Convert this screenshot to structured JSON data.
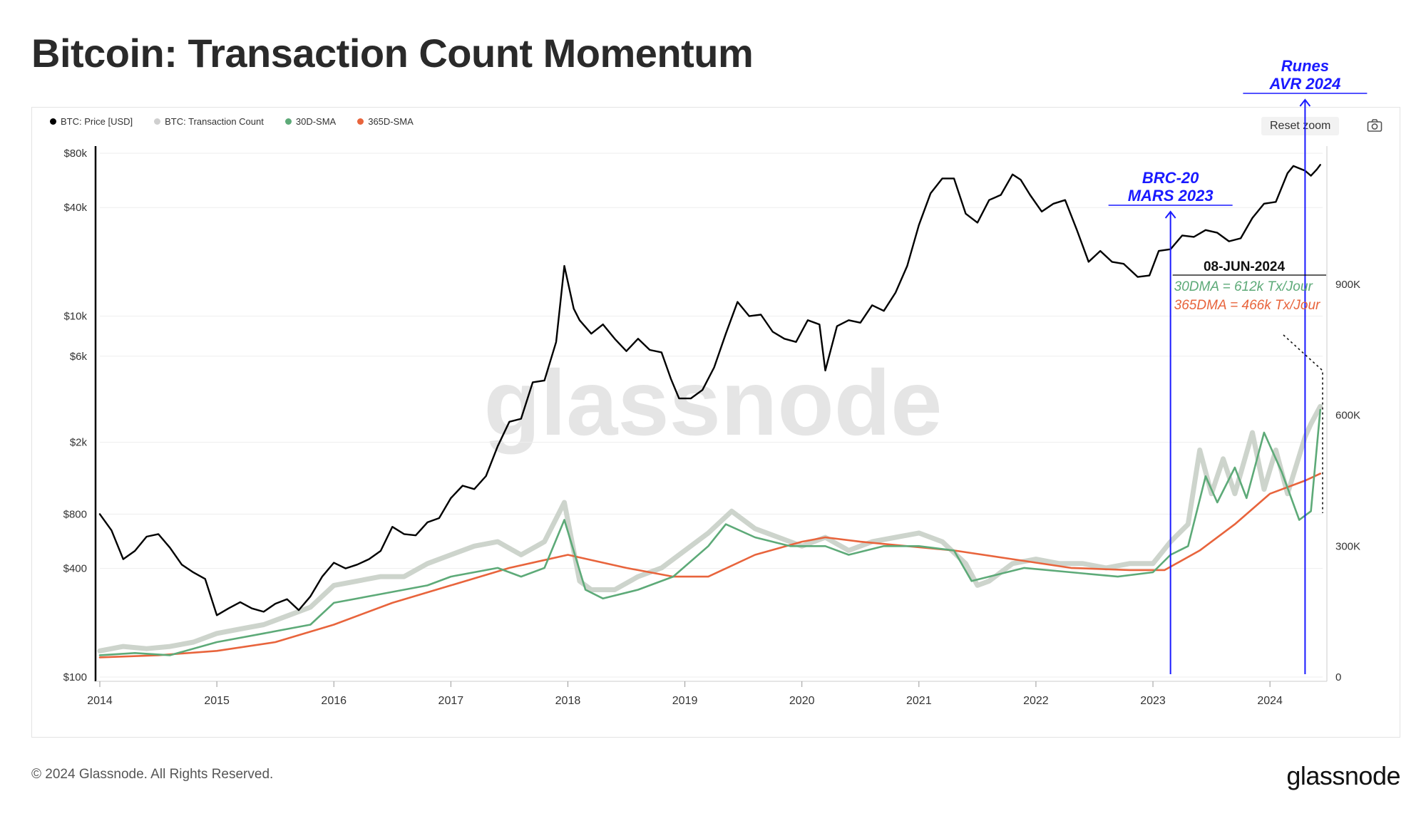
{
  "page": {
    "title": "Bitcoin: Transaction Count Momentum",
    "copyright": "© 2024 Glassnode. All Rights Reserved.",
    "brand": "glassnode",
    "watermark": "glassnode"
  },
  "toolbar": {
    "reset_zoom_label": "Reset zoom",
    "camera_icon": "camera-icon"
  },
  "colors": {
    "price": "#000000",
    "tx_count": "#c8cfc7",
    "sma30": "#5daa78",
    "sma365": "#e8643c",
    "annotation": "#1a1aff",
    "grid": "#eeeeee"
  },
  "legend": [
    {
      "label": "BTC: Price [USD]",
      "color": "#000000"
    },
    {
      "label": "BTC: Transaction Count",
      "color": "#cfcfcf"
    },
    {
      "label": "30D-SMA",
      "color": "#5daa78"
    },
    {
      "label": "365D-SMA",
      "color": "#e8643c"
    }
  ],
  "annotations": {
    "brc20": {
      "line1": "BRC-20",
      "line2": "MARS 2023",
      "x": 2023.15
    },
    "runes": {
      "line1": "Runes",
      "line2": "AVR 2024",
      "x": 2024.3
    },
    "callout": {
      "date": "08-JUN-2024",
      "dma30": "30DMA = 612k Tx/Jour",
      "dma365": "365DMA = 466k Tx/Jour"
    }
  },
  "chart_data": {
    "type": "line",
    "x_ticks": [
      "2014",
      "2015",
      "2016",
      "2017",
      "2018",
      "2019",
      "2020",
      "2021",
      "2022",
      "2023",
      "2024"
    ],
    "xlim": [
      2014,
      2024.45
    ],
    "y_left": {
      "scale": "log",
      "ticks": [
        "$100",
        "$400",
        "$800",
        "$2k",
        "$6k",
        "$10k",
        "$40k",
        "$80k"
      ],
      "tick_values": [
        100,
        400,
        800,
        2000,
        6000,
        10000,
        40000,
        80000
      ],
      "ylim": [
        100,
        80000
      ]
    },
    "y_right": {
      "scale": "linear",
      "ticks": [
        "0",
        "300K",
        "600K",
        "900K"
      ],
      "tick_values": [
        0,
        300000,
        600000,
        900000
      ],
      "ylim": [
        0,
        1200000
      ]
    },
    "series": [
      {
        "name": "BTC: Price [USD]",
        "axis": "left",
        "points": [
          [
            2014.0,
            800
          ],
          [
            2014.1,
            650
          ],
          [
            2014.2,
            450
          ],
          [
            2014.3,
            500
          ],
          [
            2014.4,
            600
          ],
          [
            2014.5,
            620
          ],
          [
            2014.6,
            520
          ],
          [
            2014.7,
            420
          ],
          [
            2014.8,
            380
          ],
          [
            2014.9,
            350
          ],
          [
            2015.0,
            220
          ],
          [
            2015.1,
            240
          ],
          [
            2015.2,
            260
          ],
          [
            2015.3,
            240
          ],
          [
            2015.4,
            230
          ],
          [
            2015.5,
            255
          ],
          [
            2015.6,
            270
          ],
          [
            2015.7,
            235
          ],
          [
            2015.8,
            280
          ],
          [
            2015.9,
            360
          ],
          [
            2016.0,
            430
          ],
          [
            2016.1,
            400
          ],
          [
            2016.2,
            420
          ],
          [
            2016.3,
            450
          ],
          [
            2016.4,
            500
          ],
          [
            2016.5,
            680
          ],
          [
            2016.6,
            620
          ],
          [
            2016.7,
            610
          ],
          [
            2016.8,
            720
          ],
          [
            2016.9,
            760
          ],
          [
            2017.0,
            980
          ],
          [
            2017.1,
            1150
          ],
          [
            2017.2,
            1100
          ],
          [
            2017.3,
            1300
          ],
          [
            2017.4,
            1900
          ],
          [
            2017.5,
            2600
          ],
          [
            2017.6,
            2700
          ],
          [
            2017.7,
            4300
          ],
          [
            2017.8,
            4400
          ],
          [
            2017.9,
            7200
          ],
          [
            2017.97,
            19000
          ],
          [
            2018.05,
            11000
          ],
          [
            2018.1,
            9500
          ],
          [
            2018.2,
            8000
          ],
          [
            2018.3,
            9000
          ],
          [
            2018.4,
            7500
          ],
          [
            2018.5,
            6400
          ],
          [
            2018.6,
            7500
          ],
          [
            2018.7,
            6500
          ],
          [
            2018.8,
            6300
          ],
          [
            2018.88,
            4500
          ],
          [
            2018.95,
            3500
          ],
          [
            2019.05,
            3500
          ],
          [
            2019.15,
            3900
          ],
          [
            2019.25,
            5200
          ],
          [
            2019.35,
            8000
          ],
          [
            2019.45,
            12000
          ],
          [
            2019.55,
            10000
          ],
          [
            2019.65,
            10200
          ],
          [
            2019.75,
            8200
          ],
          [
            2019.85,
            7500
          ],
          [
            2019.95,
            7200
          ],
          [
            2020.05,
            9500
          ],
          [
            2020.15,
            9000
          ],
          [
            2020.2,
            5000
          ],
          [
            2020.3,
            8800
          ],
          [
            2020.4,
            9500
          ],
          [
            2020.5,
            9200
          ],
          [
            2020.6,
            11500
          ],
          [
            2020.7,
            10700
          ],
          [
            2020.8,
            13500
          ],
          [
            2020.9,
            19000
          ],
          [
            2021.0,
            32000
          ],
          [
            2021.1,
            48000
          ],
          [
            2021.2,
            58000
          ],
          [
            2021.3,
            58000
          ],
          [
            2021.4,
            37000
          ],
          [
            2021.5,
            33000
          ],
          [
            2021.6,
            44000
          ],
          [
            2021.7,
            47000
          ],
          [
            2021.8,
            61000
          ],
          [
            2021.87,
            57000
          ],
          [
            2021.95,
            47000
          ],
          [
            2022.05,
            38000
          ],
          [
            2022.15,
            42000
          ],
          [
            2022.25,
            44000
          ],
          [
            2022.35,
            30000
          ],
          [
            2022.45,
            20000
          ],
          [
            2022.55,
            23000
          ],
          [
            2022.65,
            20000
          ],
          [
            2022.75,
            19500
          ],
          [
            2022.87,
            16500
          ],
          [
            2022.97,
            16800
          ],
          [
            2023.05,
            23000
          ],
          [
            2023.15,
            23500
          ],
          [
            2023.25,
            28000
          ],
          [
            2023.35,
            27500
          ],
          [
            2023.45,
            30000
          ],
          [
            2023.55,
            29000
          ],
          [
            2023.65,
            26000
          ],
          [
            2023.75,
            27000
          ],
          [
            2023.85,
            35000
          ],
          [
            2023.95,
            42000
          ],
          [
            2024.05,
            43000
          ],
          [
            2024.15,
            62000
          ],
          [
            2024.2,
            68000
          ],
          [
            2024.3,
            64000
          ],
          [
            2024.35,
            60000
          ],
          [
            2024.4,
            65000
          ],
          [
            2024.43,
            69000
          ]
        ]
      },
      {
        "name": "BTC: Transaction Count",
        "axis": "right",
        "points": [
          [
            2014.0,
            60000
          ],
          [
            2014.2,
            70000
          ],
          [
            2014.4,
            65000
          ],
          [
            2014.6,
            70000
          ],
          [
            2014.8,
            80000
          ],
          [
            2015.0,
            100000
          ],
          [
            2015.2,
            110000
          ],
          [
            2015.4,
            120000
          ],
          [
            2015.6,
            140000
          ],
          [
            2015.8,
            160000
          ],
          [
            2016.0,
            210000
          ],
          [
            2016.2,
            220000
          ],
          [
            2016.4,
            230000
          ],
          [
            2016.6,
            230000
          ],
          [
            2016.8,
            260000
          ],
          [
            2017.0,
            280000
          ],
          [
            2017.2,
            300000
          ],
          [
            2017.4,
            310000
          ],
          [
            2017.6,
            280000
          ],
          [
            2017.8,
            310000
          ],
          [
            2017.97,
            400000
          ],
          [
            2018.1,
            220000
          ],
          [
            2018.2,
            200000
          ],
          [
            2018.4,
            200000
          ],
          [
            2018.6,
            230000
          ],
          [
            2018.8,
            250000
          ],
          [
            2019.0,
            290000
          ],
          [
            2019.2,
            330000
          ],
          [
            2019.4,
            380000
          ],
          [
            2019.6,
            340000
          ],
          [
            2019.8,
            320000
          ],
          [
            2020.0,
            300000
          ],
          [
            2020.2,
            320000
          ],
          [
            2020.4,
            290000
          ],
          [
            2020.6,
            310000
          ],
          [
            2020.8,
            320000
          ],
          [
            2021.0,
            330000
          ],
          [
            2021.2,
            310000
          ],
          [
            2021.4,
            260000
          ],
          [
            2021.5,
            210000
          ],
          [
            2021.6,
            220000
          ],
          [
            2021.8,
            260000
          ],
          [
            2022.0,
            270000
          ],
          [
            2022.2,
            260000
          ],
          [
            2022.4,
            260000
          ],
          [
            2022.6,
            250000
          ],
          [
            2022.8,
            260000
          ],
          [
            2023.0,
            260000
          ],
          [
            2023.15,
            310000
          ],
          [
            2023.3,
            350000
          ],
          [
            2023.4,
            520000
          ],
          [
            2023.5,
            420000
          ],
          [
            2023.6,
            500000
          ],
          [
            2023.7,
            420000
          ],
          [
            2023.85,
            560000
          ],
          [
            2023.95,
            430000
          ],
          [
            2024.05,
            520000
          ],
          [
            2024.15,
            420000
          ],
          [
            2024.3,
            550000
          ],
          [
            2024.35,
            580000
          ],
          [
            2024.43,
            620000
          ]
        ]
      },
      {
        "name": "30D-SMA",
        "axis": "right",
        "points": [
          [
            2014.0,
            50000
          ],
          [
            2014.3,
            55000
          ],
          [
            2014.6,
            50000
          ],
          [
            2015.0,
            80000
          ],
          [
            2015.4,
            100000
          ],
          [
            2015.8,
            120000
          ],
          [
            2016.0,
            170000
          ],
          [
            2016.4,
            190000
          ],
          [
            2016.8,
            210000
          ],
          [
            2017.0,
            230000
          ],
          [
            2017.4,
            250000
          ],
          [
            2017.6,
            230000
          ],
          [
            2017.8,
            250000
          ],
          [
            2017.97,
            360000
          ],
          [
            2018.15,
            200000
          ],
          [
            2018.3,
            180000
          ],
          [
            2018.6,
            200000
          ],
          [
            2018.9,
            230000
          ],
          [
            2019.2,
            300000
          ],
          [
            2019.35,
            350000
          ],
          [
            2019.6,
            320000
          ],
          [
            2019.9,
            300000
          ],
          [
            2020.2,
            300000
          ],
          [
            2020.4,
            280000
          ],
          [
            2020.7,
            300000
          ],
          [
            2021.0,
            300000
          ],
          [
            2021.3,
            290000
          ],
          [
            2021.45,
            220000
          ],
          [
            2021.6,
            230000
          ],
          [
            2021.9,
            250000
          ],
          [
            2022.3,
            240000
          ],
          [
            2022.7,
            230000
          ],
          [
            2023.0,
            240000
          ],
          [
            2023.15,
            280000
          ],
          [
            2023.3,
            300000
          ],
          [
            2023.45,
            460000
          ],
          [
            2023.55,
            400000
          ],
          [
            2023.7,
            480000
          ],
          [
            2023.8,
            410000
          ],
          [
            2023.95,
            560000
          ],
          [
            2024.1,
            470000
          ],
          [
            2024.25,
            360000
          ],
          [
            2024.35,
            380000
          ],
          [
            2024.43,
            612000
          ]
        ]
      },
      {
        "name": "365D-SMA",
        "axis": "right",
        "points": [
          [
            2014.0,
            45000
          ],
          [
            2014.5,
            50000
          ],
          [
            2015.0,
            60000
          ],
          [
            2015.5,
            80000
          ],
          [
            2016.0,
            120000
          ],
          [
            2016.5,
            170000
          ],
          [
            2017.0,
            210000
          ],
          [
            2017.5,
            250000
          ],
          [
            2018.0,
            280000
          ],
          [
            2018.5,
            250000
          ],
          [
            2018.9,
            230000
          ],
          [
            2019.2,
            230000
          ],
          [
            2019.6,
            280000
          ],
          [
            2020.0,
            310000
          ],
          [
            2020.2,
            320000
          ],
          [
            2020.5,
            310000
          ],
          [
            2020.9,
            300000
          ],
          [
            2021.3,
            290000
          ],
          [
            2021.8,
            270000
          ],
          [
            2022.3,
            250000
          ],
          [
            2022.8,
            245000
          ],
          [
            2023.1,
            245000
          ],
          [
            2023.4,
            290000
          ],
          [
            2023.7,
            350000
          ],
          [
            2024.0,
            420000
          ],
          [
            2024.3,
            450000
          ],
          [
            2024.43,
            466000
          ]
        ]
      }
    ]
  }
}
